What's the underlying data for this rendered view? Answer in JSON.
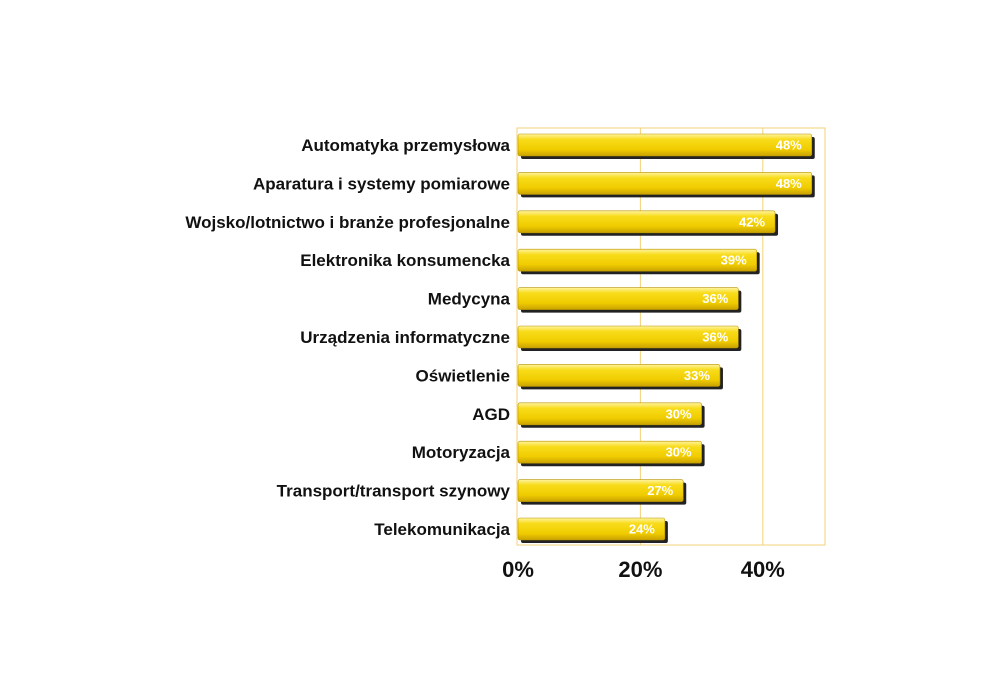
{
  "chart_data": {
    "type": "bar",
    "orientation": "horizontal",
    "title": "",
    "xlabel": "",
    "ylabel": "",
    "categories": [
      "Automatyka przemysłowa",
      "Aparatura i systemy pomiarowe",
      "Wojsko/lotnictwo i branże profesjonalne",
      "Elektronika konsumencka",
      "Medycyna",
      "Urządzenia informatyczne",
      "Oświetlenie",
      "AGD",
      "Motoryzacja",
      "Transport/transport szynowy",
      "Telekomunikacja"
    ],
    "values": [
      48,
      48,
      42,
      39,
      36,
      36,
      33,
      30,
      30,
      27,
      24
    ],
    "value_labels": [
      "48%",
      "48%",
      "42%",
      "39%",
      "36%",
      "36%",
      "33%",
      "30%",
      "30%",
      "27%",
      "24%"
    ],
    "xlim": [
      0,
      50
    ],
    "xticks": [
      0,
      20,
      40
    ],
    "xtick_labels": [
      "0%",
      "20%",
      "40%"
    ],
    "grid": true,
    "legend": "none",
    "colors": {
      "bar_top": "#fff4a0",
      "bar_mid": "#f5d000",
      "bar_bottom": "#c9a200",
      "bar_shadow": "#222222",
      "frame": "#f3d27a",
      "gridline": "#f3d27a"
    }
  }
}
